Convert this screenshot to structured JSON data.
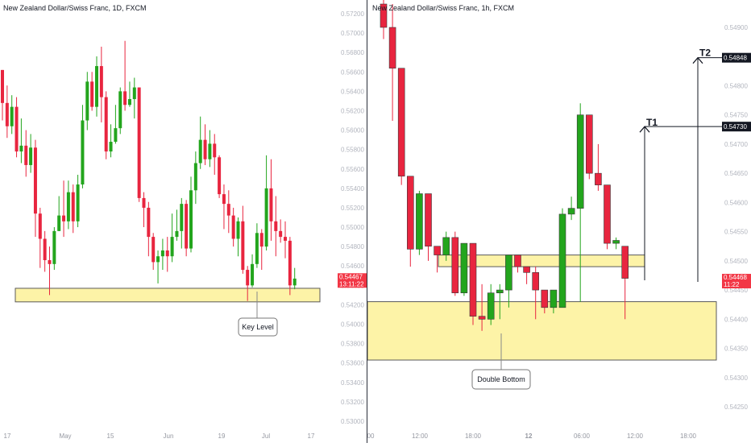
{
  "left_chart": {
    "title": "New Zealand Dollar/Swiss Franc, 1D, FXCM",
    "price_labels": [
      "0.57200",
      "0.57000",
      "0.56800",
      "0.56600",
      "0.56400",
      "0.56200",
      "0.56000",
      "0.55800",
      "0.55600",
      "0.55400",
      "0.55200",
      "0.55000",
      "0.54800",
      "0.54600",
      "0.54400",
      "0.54200",
      "0.54000",
      "0.53800",
      "0.53600",
      "0.53400",
      "0.53200",
      "0.53000"
    ],
    "time_labels": [
      "17",
      "May",
      "15",
      "Jun",
      "19",
      "Jul",
      "17"
    ],
    "last_price": "0.54467",
    "countdown": "13:11:22",
    "annotation": "Key Level",
    "colors": {
      "up": "#23a51d",
      "down": "#e8253f",
      "zone": "#fdf3a7",
      "zone_border": "#5a5a5a",
      "price_tag": "#f23645"
    }
  },
  "right_chart": {
    "title": "New Zealand Dollar/Swiss Franc, 1h, FXCM",
    "price_labels": [
      "0.54900",
      "0.54850",
      "0.54800",
      "0.54750",
      "0.54700",
      "0.54650",
      "0.54600",
      "0.54550",
      "0.54500",
      "0.54450",
      "0.54400",
      "0.54350",
      "0.54300",
      "0.54250"
    ],
    "time_labels": [
      "00",
      "12:00",
      "18:00",
      "12",
      "06:00",
      "12:00",
      "18:00"
    ],
    "t1_price": "0.54730",
    "t2_price": "0.54848",
    "t1_label": "T1",
    "t2_label": "T2",
    "last_price": "0.54468",
    "countdown": "11:22",
    "annotation": "Double Bottom",
    "colors": {
      "up": "#23a51d",
      "down": "#e8253f",
      "zone": "#fdf3a7",
      "zone_border": "#5a5a5a",
      "price_tag": "#f23645"
    }
  },
  "chart_data": [
    {
      "type": "candlestick",
      "title": "New Zealand Dollar/Swiss Franc, 1D, FXCM",
      "y_range": [
        0.5295,
        0.5735
      ],
      "x_ticks": [
        "17",
        "May",
        "15",
        "Jun",
        "19",
        "Jul",
        "17"
      ],
      "candles": [
        [
          0.5662,
          0.5628,
          0.5662,
          0.561
        ],
        [
          0.5628,
          0.5604,
          0.5646,
          0.5592
        ],
        [
          0.5604,
          0.5624,
          0.5636,
          0.5596
        ],
        [
          0.5624,
          0.5578,
          0.5634,
          0.5572
        ],
        [
          0.5578,
          0.5584,
          0.5612,
          0.5566
        ],
        [
          0.5584,
          0.5564,
          0.56,
          0.5552
        ],
        [
          0.5564,
          0.5582,
          0.5596,
          0.5556
        ],
        [
          0.5582,
          0.5514,
          0.559,
          0.549
        ],
        [
          0.5514,
          0.5488,
          0.552,
          0.5458
        ],
        [
          0.5488,
          0.5466,
          0.5496,
          0.5454
        ],
        [
          0.5466,
          0.5462,
          0.548,
          0.543
        ],
        [
          0.5462,
          0.5496,
          0.55,
          0.5456
        ],
        [
          0.5496,
          0.5512,
          0.5532,
          0.5496
        ],
        [
          0.5512,
          0.5506,
          0.5548,
          0.549
        ],
        [
          0.5506,
          0.5536,
          0.5548,
          0.5498
        ],
        [
          0.5536,
          0.5506,
          0.5544,
          0.5494
        ],
        [
          0.5506,
          0.5544,
          0.5554,
          0.55
        ],
        [
          0.5544,
          0.561,
          0.5626,
          0.554
        ],
        [
          0.561,
          0.565,
          0.566,
          0.56
        ],
        [
          0.565,
          0.5624,
          0.566,
          0.562
        ],
        [
          0.5624,
          0.5666,
          0.5676,
          0.5614
        ],
        [
          0.5666,
          0.5634,
          0.5686,
          0.5608
        ],
        [
          0.5634,
          0.5578,
          0.564,
          0.557
        ],
        [
          0.5578,
          0.5588,
          0.5606,
          0.5572
        ],
        [
          0.5588,
          0.5602,
          0.5626,
          0.5586
        ],
        [
          0.5602,
          0.564,
          0.5644,
          0.5596
        ],
        [
          0.564,
          0.5626,
          0.5692,
          0.562
        ],
        [
          0.5626,
          0.5632,
          0.565,
          0.5624
        ],
        [
          0.5632,
          0.5644,
          0.5654,
          0.5612
        ],
        [
          0.5644,
          0.553,
          0.5644,
          0.5526
        ],
        [
          0.553,
          0.552,
          0.5536,
          0.55
        ],
        [
          0.552,
          0.549,
          0.5526,
          0.547
        ],
        [
          0.549,
          0.5464,
          0.5494,
          0.5456
        ],
        [
          0.5464,
          0.547,
          0.5476,
          0.5442
        ],
        [
          0.547,
          0.5476,
          0.5488,
          0.5456
        ],
        [
          0.5476,
          0.547,
          0.549,
          0.5454
        ],
        [
          0.547,
          0.549,
          0.5514,
          0.5464
        ],
        [
          0.549,
          0.5496,
          0.5518,
          0.5486
        ],
        [
          0.5496,
          0.5524,
          0.553,
          0.5478
        ],
        [
          0.5524,
          0.5478,
          0.5528,
          0.547
        ],
        [
          0.5478,
          0.5538,
          0.5552,
          0.5474
        ],
        [
          0.5538,
          0.5566,
          0.5578,
          0.5524
        ],
        [
          0.5566,
          0.559,
          0.5614,
          0.556
        ],
        [
          0.559,
          0.557,
          0.5606,
          0.5564
        ],
        [
          0.557,
          0.5586,
          0.56,
          0.5562
        ],
        [
          0.5586,
          0.5572,
          0.5596,
          0.5554
        ],
        [
          0.5572,
          0.5534,
          0.5574,
          0.553
        ],
        [
          0.5534,
          0.5524,
          0.5544,
          0.5498
        ],
        [
          0.5524,
          0.5512,
          0.5538,
          0.5494
        ],
        [
          0.5512,
          0.5488,
          0.552,
          0.548
        ],
        [
          0.5488,
          0.5506,
          0.551,
          0.547
        ],
        [
          0.5506,
          0.5456,
          0.5522,
          0.5452
        ],
        [
          0.5456,
          0.544,
          0.546,
          0.5424
        ],
        [
          0.544,
          0.5462,
          0.5472,
          0.5438
        ],
        [
          0.5462,
          0.5494,
          0.5504,
          0.5458
        ],
        [
          0.5494,
          0.548,
          0.5498,
          0.5456
        ],
        [
          0.548,
          0.554,
          0.5574,
          0.5476
        ],
        [
          0.554,
          0.5506,
          0.557,
          0.5486
        ],
        [
          0.5506,
          0.5496,
          0.5532,
          0.547
        ],
        [
          0.5496,
          0.549,
          0.5508,
          0.5484
        ],
        [
          0.549,
          0.5486,
          0.5506,
          0.5468
        ],
        [
          0.5486,
          0.544,
          0.549,
          0.543
        ],
        [
          0.544,
          0.5447,
          0.5458,
          0.5436
        ]
      ],
      "zones": [
        {
          "from": 0.5423,
          "to": 0.5437
        }
      ],
      "last_price": 0.54467,
      "annotation": "Key Level"
    },
    {
      "type": "candlestick",
      "title": "New Zealand Dollar/Swiss Franc, 1h, FXCM",
      "y_range": [
        0.5421,
        0.5495
      ],
      "x_ticks": [
        "00",
        "12:00",
        "18:00",
        "12",
        "06:00",
        "12:00",
        "18:00"
      ],
      "candles": [
        [
          0.5494,
          0.549,
          0.5497,
          0.5488
        ],
        [
          0.549,
          0.5483,
          0.5494,
          0.5474
        ],
        [
          0.5483,
          0.54645,
          0.5483,
          0.5463
        ],
        [
          0.54645,
          0.5452,
          0.54645,
          0.5449
        ],
        [
          0.5452,
          0.54615,
          0.5462,
          0.5451
        ],
        [
          0.54615,
          0.54525,
          0.54615,
          0.545
        ],
        [
          0.54525,
          0.5451,
          0.54525,
          0.5448
        ],
        [
          0.5451,
          0.5454,
          0.5455,
          0.545
        ],
        [
          0.5454,
          0.54445,
          0.5455,
          0.5444
        ],
        [
          0.54445,
          0.5453,
          0.5453,
          0.5444
        ],
        [
          0.5453,
          0.54405,
          0.5453,
          0.5439
        ],
        [
          0.54405,
          0.544,
          0.5446,
          0.5438
        ],
        [
          0.544,
          0.54445,
          0.5446,
          0.5439
        ],
        [
          0.54445,
          0.5445,
          0.5446,
          0.544
        ],
        [
          0.5445,
          0.5451,
          0.5451,
          0.5442
        ],
        [
          0.5451,
          0.5449,
          0.5451,
          0.5448
        ],
        [
          0.5449,
          0.5448,
          0.5449,
          0.5446
        ],
        [
          0.5448,
          0.5445,
          0.5449,
          0.544
        ],
        [
          0.5445,
          0.5442,
          0.5445,
          0.5441
        ],
        [
          0.5442,
          0.5445,
          0.5445,
          0.5441
        ],
        [
          0.5442,
          0.5458,
          0.5459,
          0.5442
        ],
        [
          0.5458,
          0.5459,
          0.5461,
          0.5457
        ],
        [
          0.5459,
          0.5475,
          0.5477,
          0.5443
        ],
        [
          0.5475,
          0.5465,
          0.5475,
          0.5464
        ],
        [
          0.5465,
          0.5463,
          0.547,
          0.5462
        ],
        [
          0.5463,
          0.5453,
          0.5463,
          0.5452
        ],
        [
          0.5453,
          0.54535,
          0.5454,
          0.5452
        ],
        [
          0.54525,
          0.5447,
          0.54525,
          0.544
        ]
      ],
      "zones": [
        {
          "from": 0.5449,
          "to": 0.5451
        },
        {
          "from": 0.5433,
          "to": 0.5443
        }
      ],
      "targets": [
        {
          "label": "T1",
          "price": 0.5473
        },
        {
          "label": "T2",
          "price": 0.54848
        }
      ],
      "last_price": 0.54468,
      "annotation": "Double Bottom"
    }
  ]
}
